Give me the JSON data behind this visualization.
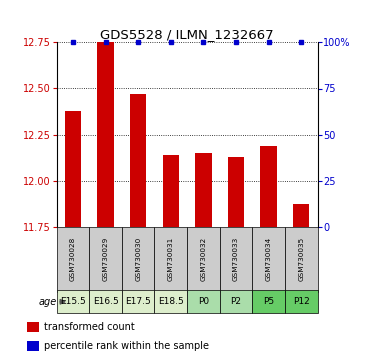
{
  "title": "GDS5528 / ILMN_1232667",
  "samples": [
    "GSM730028",
    "GSM730029",
    "GSM730030",
    "GSM730031",
    "GSM730032",
    "GSM730033",
    "GSM730034",
    "GSM730035"
  ],
  "ages": [
    "E15.5",
    "E16.5",
    "E17.5",
    "E18.5",
    "P0",
    "P2",
    "P5",
    "P12"
  ],
  "transformed_counts": [
    12.38,
    12.75,
    12.47,
    12.14,
    12.15,
    12.13,
    12.19,
    11.87
  ],
  "percentile_ranks": [
    100,
    100,
    100,
    100,
    100,
    100,
    100,
    100
  ],
  "ylim": [
    11.75,
    12.75
  ],
  "yticks": [
    11.75,
    12.0,
    12.25,
    12.5,
    12.75
  ],
  "right_yticks": [
    0,
    25,
    50,
    75,
    100
  ],
  "right_yticklabels": [
    "0",
    "25",
    "50",
    "75",
    "100%"
  ],
  "bar_color": "#cc0000",
  "dot_color": "#0000cc",
  "sample_bg": "#cccccc",
  "age_colors": [
    "#ddeecc",
    "#ddeecc",
    "#ddeecc",
    "#ddeecc",
    "#aaddaa",
    "#aaddaa",
    "#66cc66",
    "#66cc66"
  ],
  "age_light_green": "#ddeecc",
  "age_mid_green": "#aaddaa",
  "age_dark_green": "#66cc66"
}
